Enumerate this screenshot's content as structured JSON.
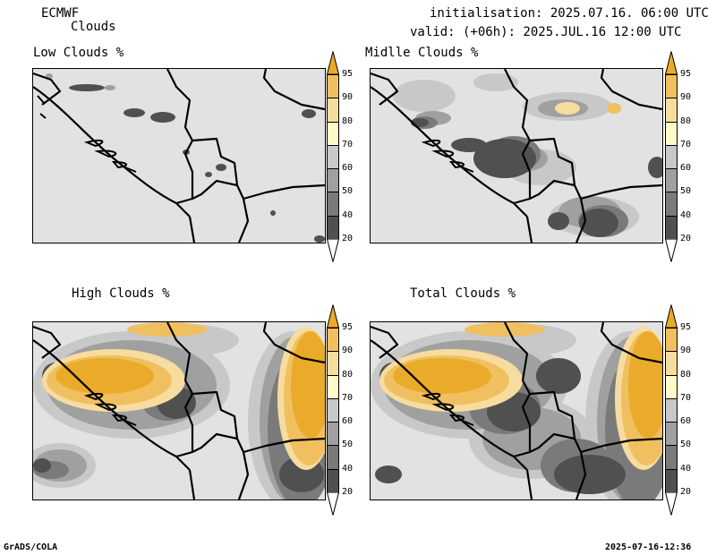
{
  "header": {
    "model": "ECMWF",
    "product": "Clouds",
    "initialisation": "initialisation: 2025.07.16. 06:00 UTC",
    "valid": "valid: (+06h): 2025.JUL.16 12:00 UTC"
  },
  "panels": [
    {
      "id": "low",
      "title": "Low Clouds %"
    },
    {
      "id": "middle",
      "title": "Midlle Clouds %"
    },
    {
      "id": "high",
      "title": "High Clouds %"
    },
    {
      "id": "total",
      "title": "Total Clouds %"
    }
  ],
  "colorbar": {
    "levels": [
      "20",
      "40",
      "50",
      "60",
      "70",
      "80",
      "90",
      "95"
    ],
    "colors": {
      "lt20": "#ffffff",
      "20_40": "#505050",
      "40_50": "#7a7a7a",
      "50_60": "#a0a0a0",
      "60_70": "#c8c8c8",
      "70_80": "#fffac8",
      "80_90": "#f7dca0",
      "90_95": "#f0c060",
      "ge95": "#eaab2a"
    }
  },
  "footer": {
    "left": "GrADS/COLA",
    "right": "2025-07-16-12:36"
  }
}
